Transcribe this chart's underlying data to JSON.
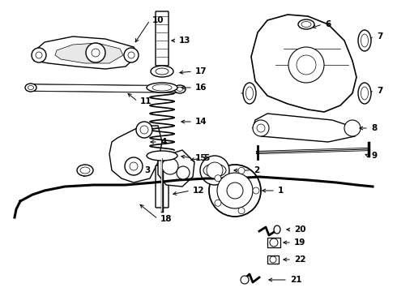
{
  "background_color": "#ffffff",
  "fig_width": 4.9,
  "fig_height": 3.6,
  "dpi": 100,
  "lw_main": 1.0,
  "lw_thin": 0.6,
  "lw_thick": 1.4
}
